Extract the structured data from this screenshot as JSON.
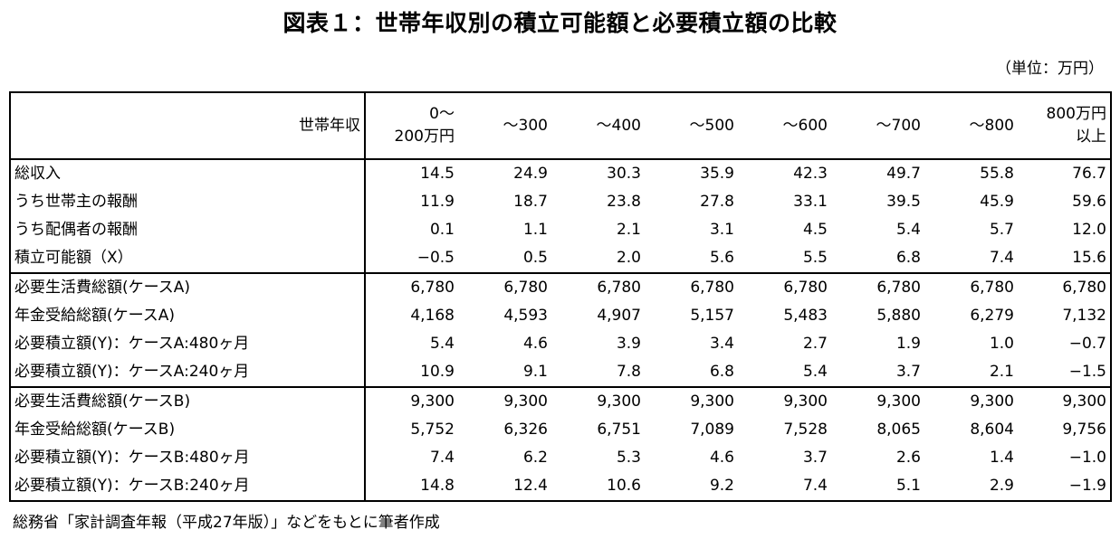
{
  "title": "図表１：世帯年収別の積立可能額と必要積立額の比較",
  "unit": "（単位：万円）",
  "table": {
    "header_label": "世帯年収",
    "columns": [
      [
        "0～",
        "200万円"
      ],
      [
        "～300"
      ],
      [
        "～400"
      ],
      [
        "～500"
      ],
      [
        "～600"
      ],
      [
        "～700"
      ],
      [
        "～800"
      ],
      [
        "800万円",
        "以上"
      ]
    ],
    "rows": [
      {
        "label": "総収入",
        "values": [
          "14.5",
          "24.9",
          "30.3",
          "35.9",
          "42.3",
          "49.7",
          "55.8",
          "76.7"
        ]
      },
      {
        "label": "うち世帯主の報酬",
        "values": [
          "11.9",
          "18.7",
          "23.8",
          "27.8",
          "33.1",
          "39.5",
          "45.9",
          "59.6"
        ]
      },
      {
        "label": "うち配偶者の報酬",
        "values": [
          "0.1",
          "1.1",
          "2.1",
          "3.1",
          "4.5",
          "5.4",
          "5.7",
          "12.0"
        ]
      },
      {
        "label": "積立可能額（X）",
        "values": [
          "−0.5",
          "0.5",
          "2.0",
          "5.6",
          "5.5",
          "6.8",
          "7.4",
          "15.6"
        ]
      },
      {
        "label": "必要生活費総額(ケースA)",
        "values": [
          "6,780",
          "6,780",
          "6,780",
          "6,780",
          "6,780",
          "6,780",
          "6,780",
          "6,780"
        ]
      },
      {
        "label": "年金受給総額(ケースA)",
        "values": [
          "4,168",
          "4,593",
          "4,907",
          "5,157",
          "5,483",
          "5,880",
          "6,279",
          "7,132"
        ]
      },
      {
        "label": "必要積立額(Y)：ケースA:480ヶ月",
        "values": [
          "5.4",
          "4.6",
          "3.9",
          "3.4",
          "2.7",
          "1.9",
          "1.0",
          "−0.7"
        ]
      },
      {
        "label": "必要積立額(Y)：ケースA:240ヶ月",
        "values": [
          "10.9",
          "9.1",
          "7.8",
          "6.8",
          "5.4",
          "3.7",
          "2.1",
          "−1.5"
        ]
      },
      {
        "label": "必要生活費総額(ケースB)",
        "values": [
          "9,300",
          "9,300",
          "9,300",
          "9,300",
          "9,300",
          "9,300",
          "9,300",
          "9,300"
        ]
      },
      {
        "label": "年金受給総額(ケースB)",
        "values": [
          "5,752",
          "6,326",
          "6,751",
          "7,089",
          "7,528",
          "8,065",
          "8,604",
          "9,756"
        ]
      },
      {
        "label": "必要積立額(Y)：ケースB:480ヶ月",
        "values": [
          "7.4",
          "6.2",
          "5.3",
          "4.6",
          "3.7",
          "2.6",
          "1.4",
          "−1.0"
        ]
      },
      {
        "label": "必要積立額(Y)：ケースB:240ヶ月",
        "values": [
          "14.8",
          "12.4",
          "10.6",
          "9.2",
          "7.4",
          "5.1",
          "2.9",
          "−1.9"
        ]
      }
    ]
  },
  "source": "総務省「家計調査年報（平成27年版）」などをもとに筆者作成"
}
